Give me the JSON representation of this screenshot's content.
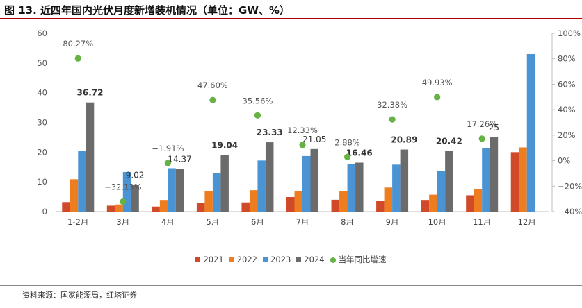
{
  "header": {
    "figure_label": "图 13.",
    "title": "近四年国内光伏月度新增装机情况（单位：GW、%）"
  },
  "footer": {
    "source": "资料来源：国家能源局，红塔证券"
  },
  "chart_data": {
    "type": "bar",
    "categories": [
      "1-2月",
      "3月",
      "4月",
      "5月",
      "6月",
      "7月",
      "8月",
      "9月",
      "10月",
      "11月",
      "12月"
    ],
    "series": [
      {
        "name": "2021",
        "color": "#d04a2a",
        "values": [
          3.2,
          2.0,
          1.7,
          2.8,
          3.1,
          4.9,
          4.0,
          3.5,
          3.7,
          5.5,
          20.0
        ]
      },
      {
        "name": "2022",
        "color": "#ee7d1f",
        "values": [
          10.9,
          2.4,
          3.7,
          6.8,
          7.2,
          6.8,
          6.8,
          8.1,
          5.7,
          7.5,
          21.6
        ]
      },
      {
        "name": "2023",
        "color": "#4b94d3",
        "values": [
          20.4,
          13.3,
          14.6,
          12.9,
          17.2,
          18.7,
          16.0,
          15.8,
          13.6,
          21.3,
          53.0
        ]
      },
      {
        "name": "2024",
        "color": "#6b6b6b",
        "values": [
          36.72,
          9.02,
          14.37,
          19.04,
          23.33,
          21.05,
          16.46,
          20.89,
          20.42,
          25,
          null
        ],
        "labels": [
          "36.72",
          "9.02",
          "14.37",
          "19.04",
          "23.33",
          "21.05",
          "16.46",
          "20.89",
          "20.42",
          "25",
          ""
        ],
        "bold_labels": [
          true,
          false,
          false,
          true,
          true,
          false,
          true,
          true,
          true,
          false,
          false
        ]
      }
    ],
    "line_series": {
      "name": "当年同比增速",
      "color": "#66b245",
      "values": [
        80.27,
        -32.13,
        -1.91,
        47.6,
        35.56,
        12.33,
        2.88,
        32.38,
        49.93,
        17.26,
        null
      ],
      "labels": [
        "80.27%",
        "−32.13%",
        "−1.91%",
        "47.60%",
        "35.56%",
        "12.33%",
        "2.88%",
        "32.38%",
        "49.93%",
        "17.26%",
        ""
      ]
    },
    "y_left": {
      "min": 0,
      "max": 60,
      "ticks": [
        0,
        10,
        20,
        30,
        40,
        50,
        60
      ]
    },
    "y_right": {
      "min": -40,
      "max": 100,
      "ticks": [
        "-40%",
        "-20%",
        "0%",
        "20%",
        "40%",
        "60%",
        "80%",
        "100%"
      ]
    },
    "grid": false,
    "legend_position": "bottom"
  }
}
